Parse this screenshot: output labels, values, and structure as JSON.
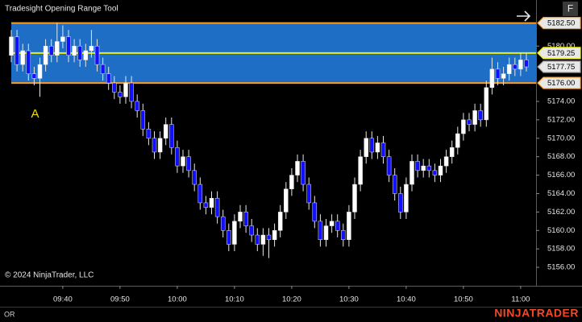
{
  "chart_data": {
    "type": "candlestick",
    "title": "Tradesight Opening Range Tool",
    "credit": "© 2024 NinjaTrader, LLC",
    "categories": [
      null,
      null,
      null,
      null,
      null,
      null,
      null,
      null,
      null,
      "09:40",
      null,
      null,
      null,
      null,
      null,
      null,
      null,
      null,
      null,
      "09:50",
      null,
      null,
      null,
      null,
      null,
      null,
      null,
      null,
      null,
      "10:00",
      null,
      null,
      null,
      null,
      null,
      null,
      null,
      null,
      null,
      "10:10",
      null,
      null,
      null,
      null,
      null,
      null,
      null,
      null,
      null,
      "10:20",
      null,
      null,
      null,
      null,
      null,
      null,
      null,
      null,
      null,
      "10:30",
      null,
      null,
      null,
      null,
      null,
      null,
      null,
      null,
      null,
      "10:40",
      null,
      null,
      null,
      null,
      null,
      null,
      null,
      null,
      null,
      "10:50",
      null,
      null,
      null,
      null,
      null,
      null,
      null,
      null,
      null,
      "11:00",
      null
    ],
    "open": [
      5179,
      5181,
      5178,
      5179.5,
      5177,
      5176.5,
      5178,
      5180,
      5179,
      5180.5,
      5181,
      5179,
      5180,
      5178.5,
      5179.5,
      5180,
      5178,
      5177,
      5176,
      5175,
      5174.5,
      5176,
      5174,
      5173,
      5171,
      5170,
      5168.5,
      5170,
      5171.5,
      5169,
      5167,
      5168,
      5166.5,
      5165,
      5163,
      5162.5,
      5163.5,
      5161.5,
      5160,
      5158.5,
      5161,
      5162,
      5160.5,
      5159.5,
      5158.5,
      5159.5,
      5159,
      5160,
      5162,
      5164.5,
      5166,
      5167.5,
      5165,
      5163,
      5161,
      5159,
      5160.5,
      5161,
      5160,
      5159,
      5162,
      5165,
      5168,
      5170,
      5168.5,
      5169.5,
      5168,
      5166,
      5164,
      5162,
      5165,
      5167.5,
      5166.5,
      5167,
      5166.5,
      5166,
      5167,
      5168,
      5169,
      5170.5,
      5172,
      5171.5,
      5173,
      5172,
      5175.5,
      5177.5,
      5176.5,
      5177,
      5178,
      5177.5,
      5178.5
    ],
    "high": [
      5181.75,
      5181.75,
      5180.25,
      5180.25,
      5177.75,
      5178.75,
      5180.75,
      5180.75,
      5182.5,
      5182.25,
      5181.75,
      5180.75,
      5180.75,
      5180.25,
      5181.75,
      5180.75,
      5178.75,
      5177.75,
      5176.75,
      5175.75,
      5176.75,
      5176.75,
      5174.75,
      5173.75,
      5171.75,
      5170.75,
      5170.75,
      5172.25,
      5172.25,
      5169.75,
      5168.75,
      5168.75,
      5167.25,
      5165.75,
      5163.75,
      5164.25,
      5164.25,
      5162.25,
      5160.75,
      5161.75,
      5162.75,
      5162.75,
      5161.25,
      5160.25,
      5160.25,
      5160.25,
      5160.75,
      5162.75,
      5165.25,
      5166.75,
      5168.25,
      5168.25,
      5165.75,
      5163.75,
      5161.75,
      5161.25,
      5161.75,
      5161.75,
      5160.75,
      5162.75,
      5165.75,
      5168.75,
      5170.75,
      5170.75,
      5170.25,
      5170.25,
      5168.75,
      5166.75,
      5164.75,
      5165.75,
      5168.25,
      5168.25,
      5167.75,
      5167.75,
      5167.25,
      5167.75,
      5168.75,
      5169.75,
      5171.25,
      5172.75,
      5172.75,
      5173.75,
      5173.75,
      5176.25,
      5178.75,
      5178.25,
      5177.75,
      5178.75,
      5178.75,
      5179.25,
      5179.25
    ],
    "low": [
      5178.25,
      5177.25,
      5177.25,
      5176.25,
      5175.75,
      5174.5,
      5177.25,
      5178.25,
      5178.25,
      5179.75,
      5178.25,
      5178.25,
      5177.75,
      5177.75,
      5178.75,
      5177.25,
      5176.25,
      5175.25,
      5174.25,
      5173.75,
      5173.75,
      5173.25,
      5172.25,
      5170.25,
      5169.25,
      5167.75,
      5167.75,
      5169.25,
      5168.25,
      5166.25,
      5166.25,
      5165.75,
      5164.25,
      5162.25,
      5161.75,
      5161.75,
      5160.75,
      5159.25,
      5157.75,
      5157.75,
      5160.25,
      5159.75,
      5158.75,
      5157.75,
      5157.25,
      5157,
      5158.25,
      5159.25,
      5161.25,
      5163.75,
      5165.25,
      5164.25,
      5162.25,
      5160.25,
      5158.25,
      5158.25,
      5159.75,
      5159.25,
      5158.25,
      5158.25,
      5161.25,
      5164.25,
      5167.25,
      5167.75,
      5167.75,
      5167.25,
      5165.25,
      5163.25,
      5161.25,
      5161.25,
      5164.25,
      5165.75,
      5165.75,
      5165.75,
      5165.25,
      5165.25,
      5166.25,
      5167.25,
      5168.25,
      5169.75,
      5170.75,
      5170.75,
      5171.25,
      5171.25,
      5174.75,
      5175.75,
      5175.75,
      5176.25,
      5176.75,
      5176.75,
      5177.25
    ],
    "close": [
      5181,
      5178,
      5179.5,
      5177,
      5176.5,
      5178,
      5180,
      5179,
      5180.5,
      5181,
      5179,
      5180,
      5178.5,
      5179.5,
      5180,
      5178,
      5177,
      5176,
      5175,
      5174.5,
      5176,
      5174,
      5173,
      5171,
      5170,
      5168.5,
      5170,
      5171.5,
      5169,
      5167,
      5168,
      5166.5,
      5165,
      5163,
      5162.5,
      5163.5,
      5161.5,
      5160,
      5158.5,
      5161,
      5162,
      5160.5,
      5159.5,
      5158.5,
      5159.5,
      5159,
      5160,
      5162,
      5164.5,
      5166,
      5167.5,
      5165,
      5163,
      5161,
      5159,
      5160.5,
      5161,
      5160,
      5159,
      5162,
      5165,
      5168,
      5170,
      5168.5,
      5169.5,
      5168,
      5166,
      5164,
      5162,
      5165,
      5167.5,
      5166.5,
      5167,
      5166.5,
      5166,
      5167,
      5168,
      5169,
      5170.5,
      5172,
      5171.5,
      5173,
      5172,
      5175.5,
      5177.5,
      5176.5,
      5177,
      5178,
      5177.5,
      5178.5,
      5177.75
    ],
    "up_color": "#ffffff",
    "down_color": "#1010ff",
    "ylim": [
      5154,
      5185
    ],
    "yticks": [
      {
        "value": 5156,
        "label": "5156.00"
      },
      {
        "value": 5158,
        "label": "5158.00"
      },
      {
        "value": 5160,
        "label": "5160.00"
      },
      {
        "value": 5162,
        "label": "5162.00"
      },
      {
        "value": 5164,
        "label": "5164.00"
      },
      {
        "value": 5166,
        "label": "5166.00"
      },
      {
        "value": 5168,
        "label": "5168.00"
      },
      {
        "value": 5170,
        "label": "5170.00"
      },
      {
        "value": 5172,
        "label": "5172.00"
      },
      {
        "value": 5174,
        "label": "5174.00"
      },
      {
        "value": 5180,
        "label": "5180.00"
      }
    ],
    "grid": false,
    "range": {
      "high": {
        "value": 5182.5,
        "label": "5182.50"
      },
      "mid": {
        "value": 5179.25,
        "label": "5179.25"
      },
      "low": {
        "value": 5176,
        "label": "5176.00"
      },
      "fill": "#1f6ec6",
      "border_color": "#ff9a1f",
      "mid_color": "#f0f000"
    },
    "last_price": {
      "value": 5177.75,
      "label": "5177.75"
    },
    "annotations": [
      {
        "text": "A",
        "index": 5,
        "color": "#f0e000"
      }
    ]
  },
  "toolbar": {
    "button": "F"
  },
  "status": "OR",
  "brand": "NINJATRADER"
}
